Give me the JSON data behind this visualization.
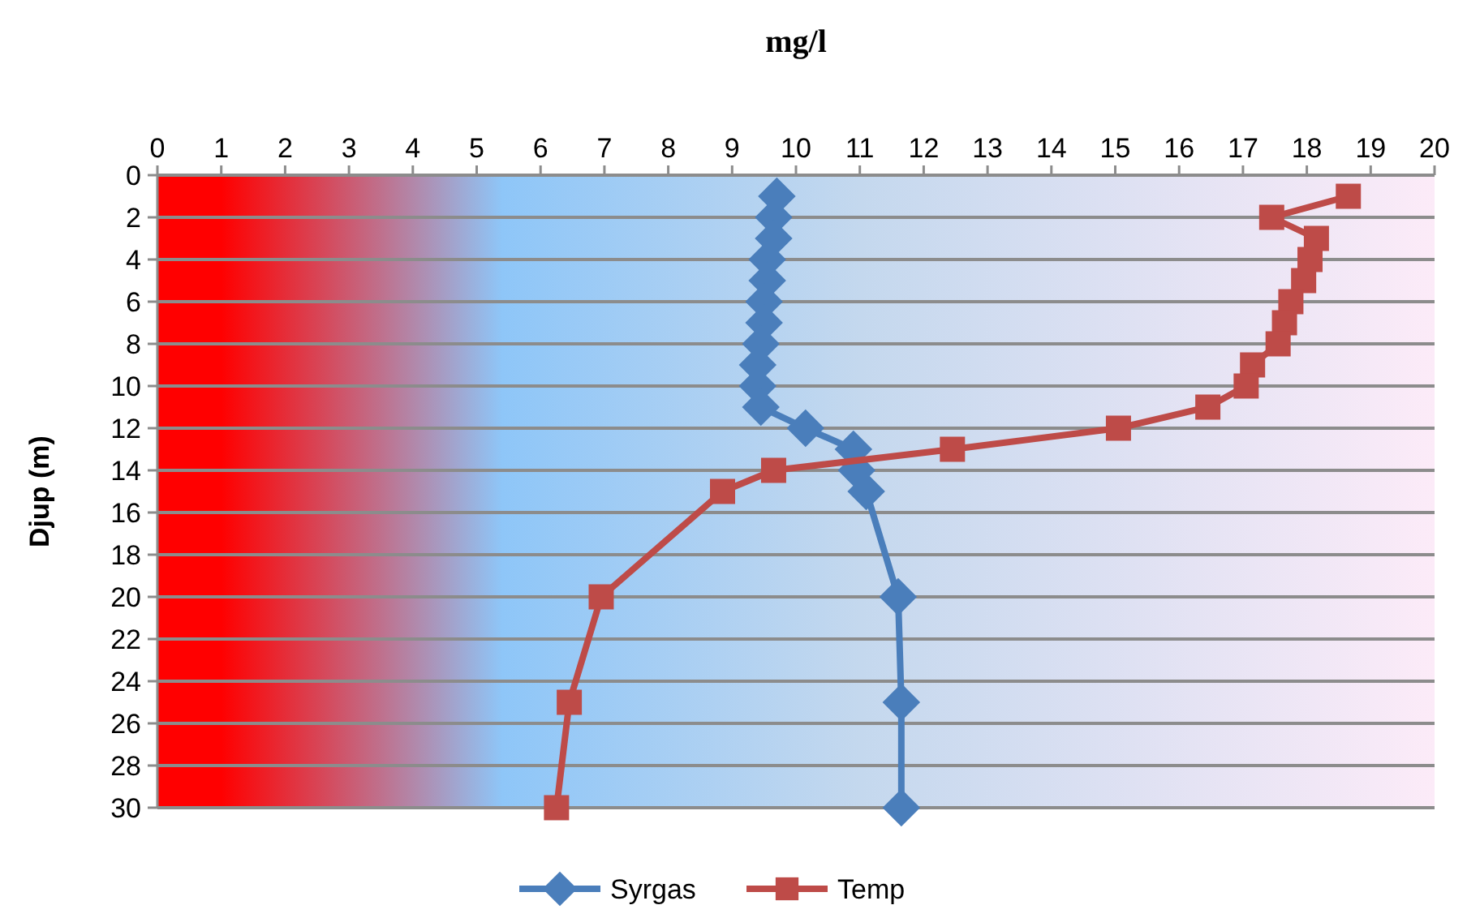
{
  "chart_data": {
    "type": "line",
    "xlabel": "mg/l",
    "ylabel": "Djup (m)",
    "xlim": [
      0,
      20
    ],
    "xticks": [
      0,
      1,
      2,
      3,
      4,
      5,
      6,
      7,
      8,
      9,
      10,
      11,
      12,
      13,
      14,
      15,
      16,
      17,
      18,
      19,
      20
    ],
    "ylim": [
      30,
      0
    ],
    "yticks": [
      0,
      2,
      4,
      6,
      8,
      10,
      12,
      14,
      16,
      18,
      20,
      22,
      24,
      26,
      28,
      30
    ],
    "grid": "y",
    "legend": "bottom",
    "line_style": "solid",
    "series": [
      {
        "name": "Syrgas",
        "color": "#4a7ebb",
        "marker": "diamond",
        "x": [
          9.7,
          9.65,
          9.65,
          9.55,
          9.55,
          9.5,
          9.5,
          9.45,
          9.4,
          9.4,
          9.45,
          10.15,
          10.9,
          10.95,
          11.1,
          11.6,
          11.65,
          11.65
        ],
        "values": [
          1,
          2,
          3,
          4,
          5,
          6,
          7,
          8,
          9,
          10,
          11,
          12,
          13,
          14,
          15,
          20,
          25,
          30
        ]
      },
      {
        "name": "Temp",
        "color": "#be4b48",
        "marker": "square",
        "x": [
          18.65,
          17.45,
          18.15,
          18.05,
          17.95,
          17.75,
          17.65,
          17.55,
          17.15,
          17.05,
          16.45,
          15.05,
          12.45,
          9.65,
          8.85,
          6.95,
          6.45,
          6.25
        ],
        "values": [
          1,
          2,
          3,
          4,
          5,
          6,
          7,
          8,
          9,
          10,
          11,
          12,
          13,
          14,
          15,
          20,
          25,
          30
        ]
      }
    ]
  }
}
